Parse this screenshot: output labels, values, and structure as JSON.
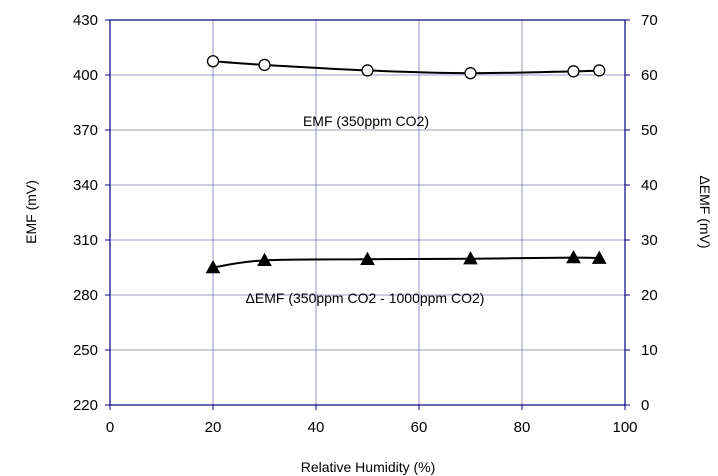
{
  "chart_data": {
    "type": "line",
    "xlabel": "Relative Humidity (%)",
    "ylabel_left": "EMF (mV)",
    "ylabel_right": "ΔEMF (mV)",
    "xlim": [
      0,
      100
    ],
    "ylim_left": [
      220,
      430
    ],
    "ylim_right": [
      0,
      70
    ],
    "x_ticks": [
      0,
      20,
      40,
      60,
      80,
      100
    ],
    "y_ticks_left": [
      220,
      250,
      280,
      310,
      340,
      370,
      400,
      430
    ],
    "y_ticks_right": [
      0,
      10,
      20,
      30,
      40,
      50,
      60,
      70
    ],
    "grid": true,
    "frame_color": "#000080",
    "grid_color": "#7b7bb0",
    "series": [
      {
        "name": "EMF (350ppm CO2)",
        "axis": "left",
        "marker": "open-circle",
        "color": "#000000",
        "x": [
          20,
          30,
          50,
          70,
          90,
          95
        ],
        "y": [
          407.5,
          405.5,
          402.5,
          401,
          402,
          402.5
        ]
      },
      {
        "name": "ΔEMF (350ppm CO2 - 1000ppm CO2)",
        "axis": "right",
        "marker": "filled-triangle",
        "color": "#000000",
        "x": [
          20,
          30,
          50,
          70,
          90,
          95
        ],
        "y": [
          25,
          26.3,
          26.5,
          26.6,
          26.8,
          26.7
        ]
      }
    ],
    "annotations": [
      {
        "text": "EMF (350ppm CO2)",
        "at_x": 70,
        "at_y_left": 366
      },
      {
        "text": "ΔEMF (350ppm CO2 - 1000ppm CO2)",
        "at_x": 58,
        "at_y_left": 277
      }
    ]
  }
}
